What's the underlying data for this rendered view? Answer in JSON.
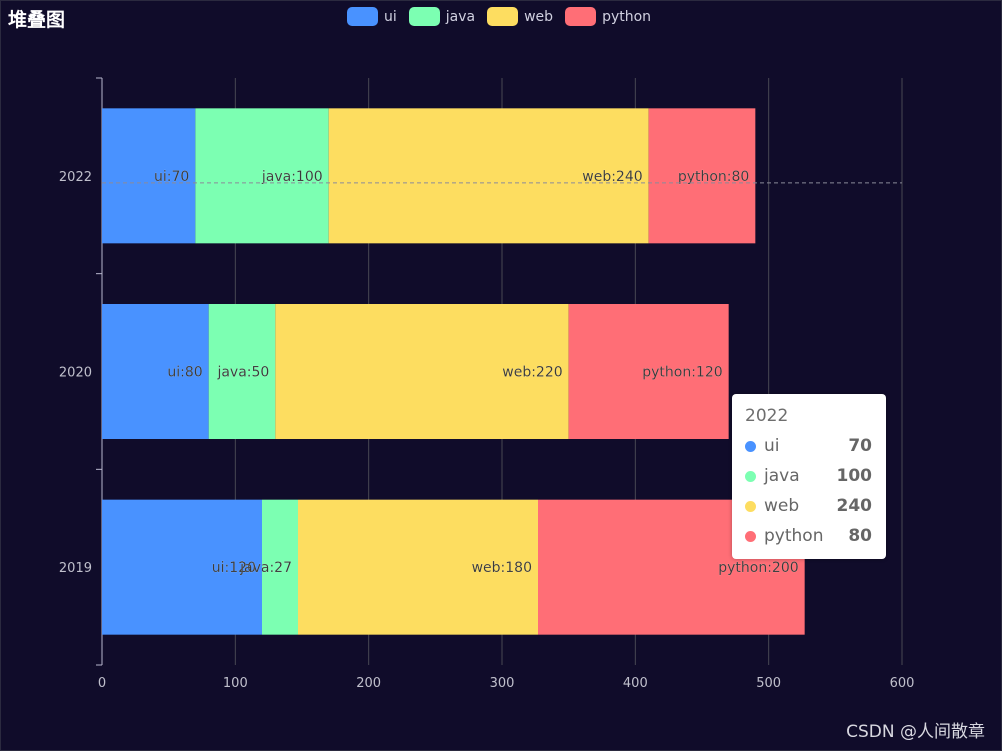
{
  "chart_data": {
    "type": "bar",
    "orientation": "horizontal",
    "stacked": true,
    "title": "堆叠图",
    "categories": [
      "2019",
      "2020",
      "2022"
    ],
    "series": [
      {
        "name": "ui",
        "color": "#4992ff",
        "values": [
          120,
          80,
          70
        ],
        "labels": [
          "ui:120",
          "ui:80",
          "ui:70"
        ]
      },
      {
        "name": "java",
        "color": "#7cffb2",
        "values": [
          27,
          50,
          100
        ],
        "labels": [
          "java:27",
          "java:50",
          "java:100"
        ]
      },
      {
        "name": "web",
        "color": "#fddd60",
        "values": [
          180,
          220,
          240
        ],
        "labels": [
          "web:180",
          "web:220",
          "web:240"
        ]
      },
      {
        "name": "python",
        "color": "#ff6e76",
        "values": [
          200,
          120,
          80
        ],
        "labels": [
          "python:200",
          "python:120",
          "python:80"
        ]
      }
    ],
    "xlim": [
      0,
      600
    ],
    "xticks": [
      "0",
      "100",
      "200",
      "300",
      "400",
      "500",
      "600"
    ],
    "grid": true,
    "legend_position": "top-center"
  },
  "tooltip": {
    "title": "2022",
    "rows": [
      {
        "name": "ui",
        "value": "70",
        "color": "#4992ff"
      },
      {
        "name": "java",
        "value": "100",
        "color": "#7cffb2"
      },
      {
        "name": "web",
        "value": "240",
        "color": "#fddd60"
      },
      {
        "name": "python",
        "value": "80",
        "color": "#ff6e76"
      }
    ]
  },
  "watermark": "CSDN @人间散章"
}
